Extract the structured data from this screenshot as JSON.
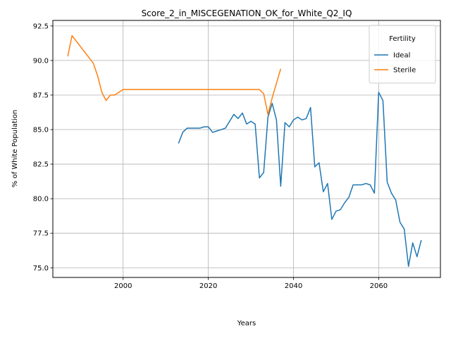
{
  "chart_data": {
    "type": "line",
    "title": "Score_2_in_MISCEGENATION_OK_for_White_Q2_IQ",
    "xlabel": "Years",
    "ylabel": "% of White Population",
    "xlim": [
      1983.5,
      2074.5
    ],
    "ylim": [
      74.3,
      92.9
    ],
    "xticks": [
      2000,
      2020,
      2040,
      2060
    ],
    "yticks": [
      75.0,
      77.5,
      80.0,
      82.5,
      85.0,
      87.5,
      90.0,
      92.5
    ],
    "grid": true,
    "legend": {
      "title": "Fertility",
      "placement": "top-right"
    },
    "series": [
      {
        "name": "Ideal",
        "color": "#1f77b4",
        "x": [
          2013,
          2014,
          2015,
          2016,
          2017,
          2018,
          2019,
          2020,
          2021,
          2022,
          2023,
          2024,
          2025,
          2026,
          2027,
          2028,
          2029,
          2030,
          2031,
          2032,
          2033,
          2034,
          2035,
          2036,
          2037,
          2038,
          2039,
          2040,
          2041,
          2042,
          2043,
          2044,
          2045,
          2046,
          2047,
          2048,
          2049,
          2050,
          2051,
          2052,
          2053,
          2054,
          2055,
          2056,
          2057,
          2058,
          2059,
          2060,
          2061,
          2062,
          2063,
          2064,
          2065,
          2066,
          2067,
          2068,
          2069,
          2070
        ],
        "values": [
          84.0,
          84.8,
          85.1,
          85.1,
          85.1,
          85.1,
          85.2,
          85.2,
          84.8,
          84.9,
          85.0,
          85.1,
          85.6,
          86.1,
          85.8,
          86.2,
          85.4,
          85.6,
          85.4,
          81.5,
          81.9,
          85.9,
          86.9,
          85.7,
          80.9,
          85.5,
          85.2,
          85.7,
          85.9,
          85.7,
          85.8,
          86.6,
          82.3,
          82.6,
          80.5,
          81.1,
          78.5,
          79.1,
          79.2,
          79.7,
          80.1,
          81.0,
          81.0,
          81.0,
          81.1,
          81.0,
          80.4,
          87.7,
          87.1,
          81.2,
          80.4,
          79.9,
          78.3,
          77.8,
          75.1,
          76.8,
          75.8,
          77.0
        ]
      },
      {
        "name": "Sterile",
        "color": "#ff7f0e",
        "x": [
          1987,
          1988,
          1993,
          1994,
          1995,
          1996,
          1997,
          1998,
          2000,
          2002,
          2010,
          2020,
          2030,
          2032,
          2033,
          2034,
          2035,
          2037
        ],
        "values": [
          90.3,
          91.8,
          89.8,
          88.9,
          87.7,
          87.1,
          87.5,
          87.5,
          87.9,
          87.9,
          87.9,
          87.9,
          87.9,
          87.9,
          87.6,
          86.1,
          87.3,
          89.4
        ]
      }
    ]
  }
}
